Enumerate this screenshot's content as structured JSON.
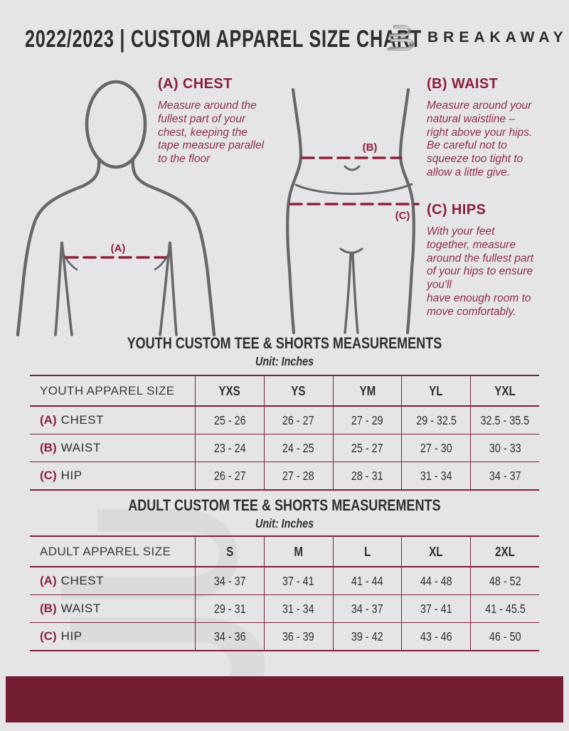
{
  "header": {
    "title": "2022/2023  |  CUSTOM APPAREL SIZE CHART",
    "brand": "BREAKAWAY"
  },
  "measure_guide": {
    "chest": {
      "heading": "(A) CHEST",
      "body": "Measure around the\nfullest part of your\nchest, keeping the\ntape measure parallel\nto the floor"
    },
    "waist": {
      "heading": "(B) WAIST",
      "body": "Measure around your\nnatural waistline –\nright above your hips.\nBe careful not to\nsqueeze too tight to\nallow a little give."
    },
    "hips": {
      "heading": "(C) HIPS",
      "body": "With your feet\ntogether, measure\naround the fullest part\nof your hips to ensure\nyou'll\nhave enough room to\nmove comfortably."
    },
    "labels": {
      "chest_marker": "(A)",
      "waist_marker": "(B)",
      "hips_marker": "(C)"
    }
  },
  "youth_table": {
    "title": "YOUTH CUSTOM TEE & SHORTS MEASUREMENTS",
    "unit": "Unit: Inches",
    "header": [
      "YOUTH APPAREL SIZE",
      "YXS",
      "YS",
      "YM",
      "YL",
      "YXL"
    ],
    "rows": [
      {
        "marker": "(A)",
        "label": "CHEST",
        "values": [
          "25 - 26",
          "26 - 27",
          "27 - 29",
          "29 - 32.5",
          "32.5 - 35.5"
        ]
      },
      {
        "marker": "(B)",
        "label": "WAIST",
        "values": [
          "23 - 24",
          "24 - 25",
          "25 - 27",
          "27 - 30",
          "30 - 33"
        ]
      },
      {
        "marker": "(C)",
        "label": "HIP",
        "values": [
          "26 - 27",
          "27 - 28",
          "28 - 31",
          "31 - 34",
          "34 - 37"
        ]
      }
    ]
  },
  "adult_table": {
    "title": "ADULT CUSTOM TEE & SHORTS MEASUREMENTS",
    "unit": "Unit: Inches",
    "header": [
      "ADULT APPAREL SIZE",
      "S",
      "M",
      "L",
      "XL",
      "2XL"
    ],
    "rows": [
      {
        "marker": "(A)",
        "label": "CHEST",
        "values": [
          "34 - 37",
          "37 - 41",
          "41 - 44",
          "44 - 48",
          "48 - 52"
        ]
      },
      {
        "marker": "(B)",
        "label": "WAIST",
        "values": [
          "29 - 31",
          "31 - 34",
          "34 - 37",
          "37 - 41",
          "41 - 45.5"
        ]
      },
      {
        "marker": "(C)",
        "label": "HIP",
        "values": [
          "34 - 36",
          "36 - 39",
          "39 - 42",
          "43 - 46",
          "46 - 50"
        ]
      }
    ]
  },
  "colors": {
    "maroon": "#7d2137",
    "maroon_dark": "#731d32",
    "maroon_heading": "#8a1f3b",
    "maroon_body_text": "#8e2d4b",
    "ink": "#2d2d2f",
    "figure_gray": "#66676a",
    "background": "#e5e5e7"
  }
}
